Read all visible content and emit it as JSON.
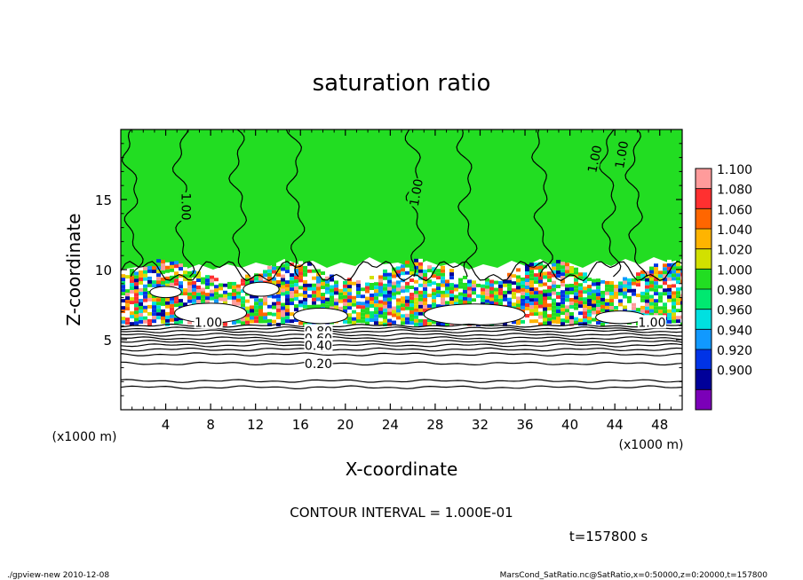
{
  "chart_data": {
    "type": "heatmap",
    "title": "saturation ratio",
    "xlabel": "X-coordinate",
    "ylabel": "Z-coordinate",
    "x_unit": "(x1000 m)",
    "y_unit": "(x1000 m)",
    "xlim": [
      0,
      50
    ],
    "ylim": [
      0,
      20
    ],
    "x_ticks": [
      "4",
      "8",
      "12",
      "16",
      "20",
      "24",
      "28",
      "32",
      "36",
      "40",
      "44",
      "48"
    ],
    "x_tick_values": [
      4,
      8,
      12,
      16,
      20,
      24,
      28,
      32,
      36,
      40,
      44,
      48
    ],
    "y_ticks": [
      "5",
      "10",
      "15"
    ],
    "y_tick_values": [
      5,
      10,
      15
    ],
    "colorbar": {
      "labels": [
        "1.100",
        "1.080",
        "1.060",
        "1.040",
        "1.020",
        "1.000",
        "0.980",
        "0.960",
        "0.940",
        "0.920",
        "0.900"
      ],
      "colors": [
        "#ff9b9b",
        "#ff3030",
        "#ff6600",
        "#ffb400",
        "#d2e000",
        "#22dd22",
        "#00e870",
        "#00e0e0",
        "#1199ff",
        "#0033e6",
        "#000099",
        "#7b00b8"
      ]
    },
    "contour_labels": [
      {
        "text": "1.00",
        "x": 5.8,
        "z": 14.5,
        "angle": 90
      },
      {
        "text": "1.00",
        "x": 26.3,
        "z": 15.5,
        "angle": -80
      },
      {
        "text": "1.00",
        "x": 42.2,
        "z": 17.9,
        "angle": -78
      },
      {
        "text": "1.00",
        "x": 44.6,
        "z": 18.2,
        "angle": -80
      },
      {
        "text": "1.00",
        "x": 7.8,
        "z": 6.25,
        "angle": 0
      },
      {
        "text": "1.00",
        "x": 47.3,
        "z": 6.25,
        "angle": 0
      },
      {
        "text": "0.80",
        "x": 17.6,
        "z": 5.6,
        "angle": 0
      },
      {
        "text": "0.60",
        "x": 17.6,
        "z": 5.1,
        "angle": 0
      },
      {
        "text": "0.40",
        "x": 17.6,
        "z": 4.6,
        "angle": 0
      },
      {
        "text": "0.20",
        "x": 17.6,
        "z": 3.3,
        "angle": 0
      }
    ],
    "contour_interval": "CONTOUR INTERVAL = 1.000E-01",
    "time_label": "t=157800   s"
  },
  "footer": {
    "left": "./gpview-new   2010-12-08",
    "right": "MarsCond_SatRatio.nc@SatRatio,x=0:50000,z=0:20000,t=157800"
  }
}
